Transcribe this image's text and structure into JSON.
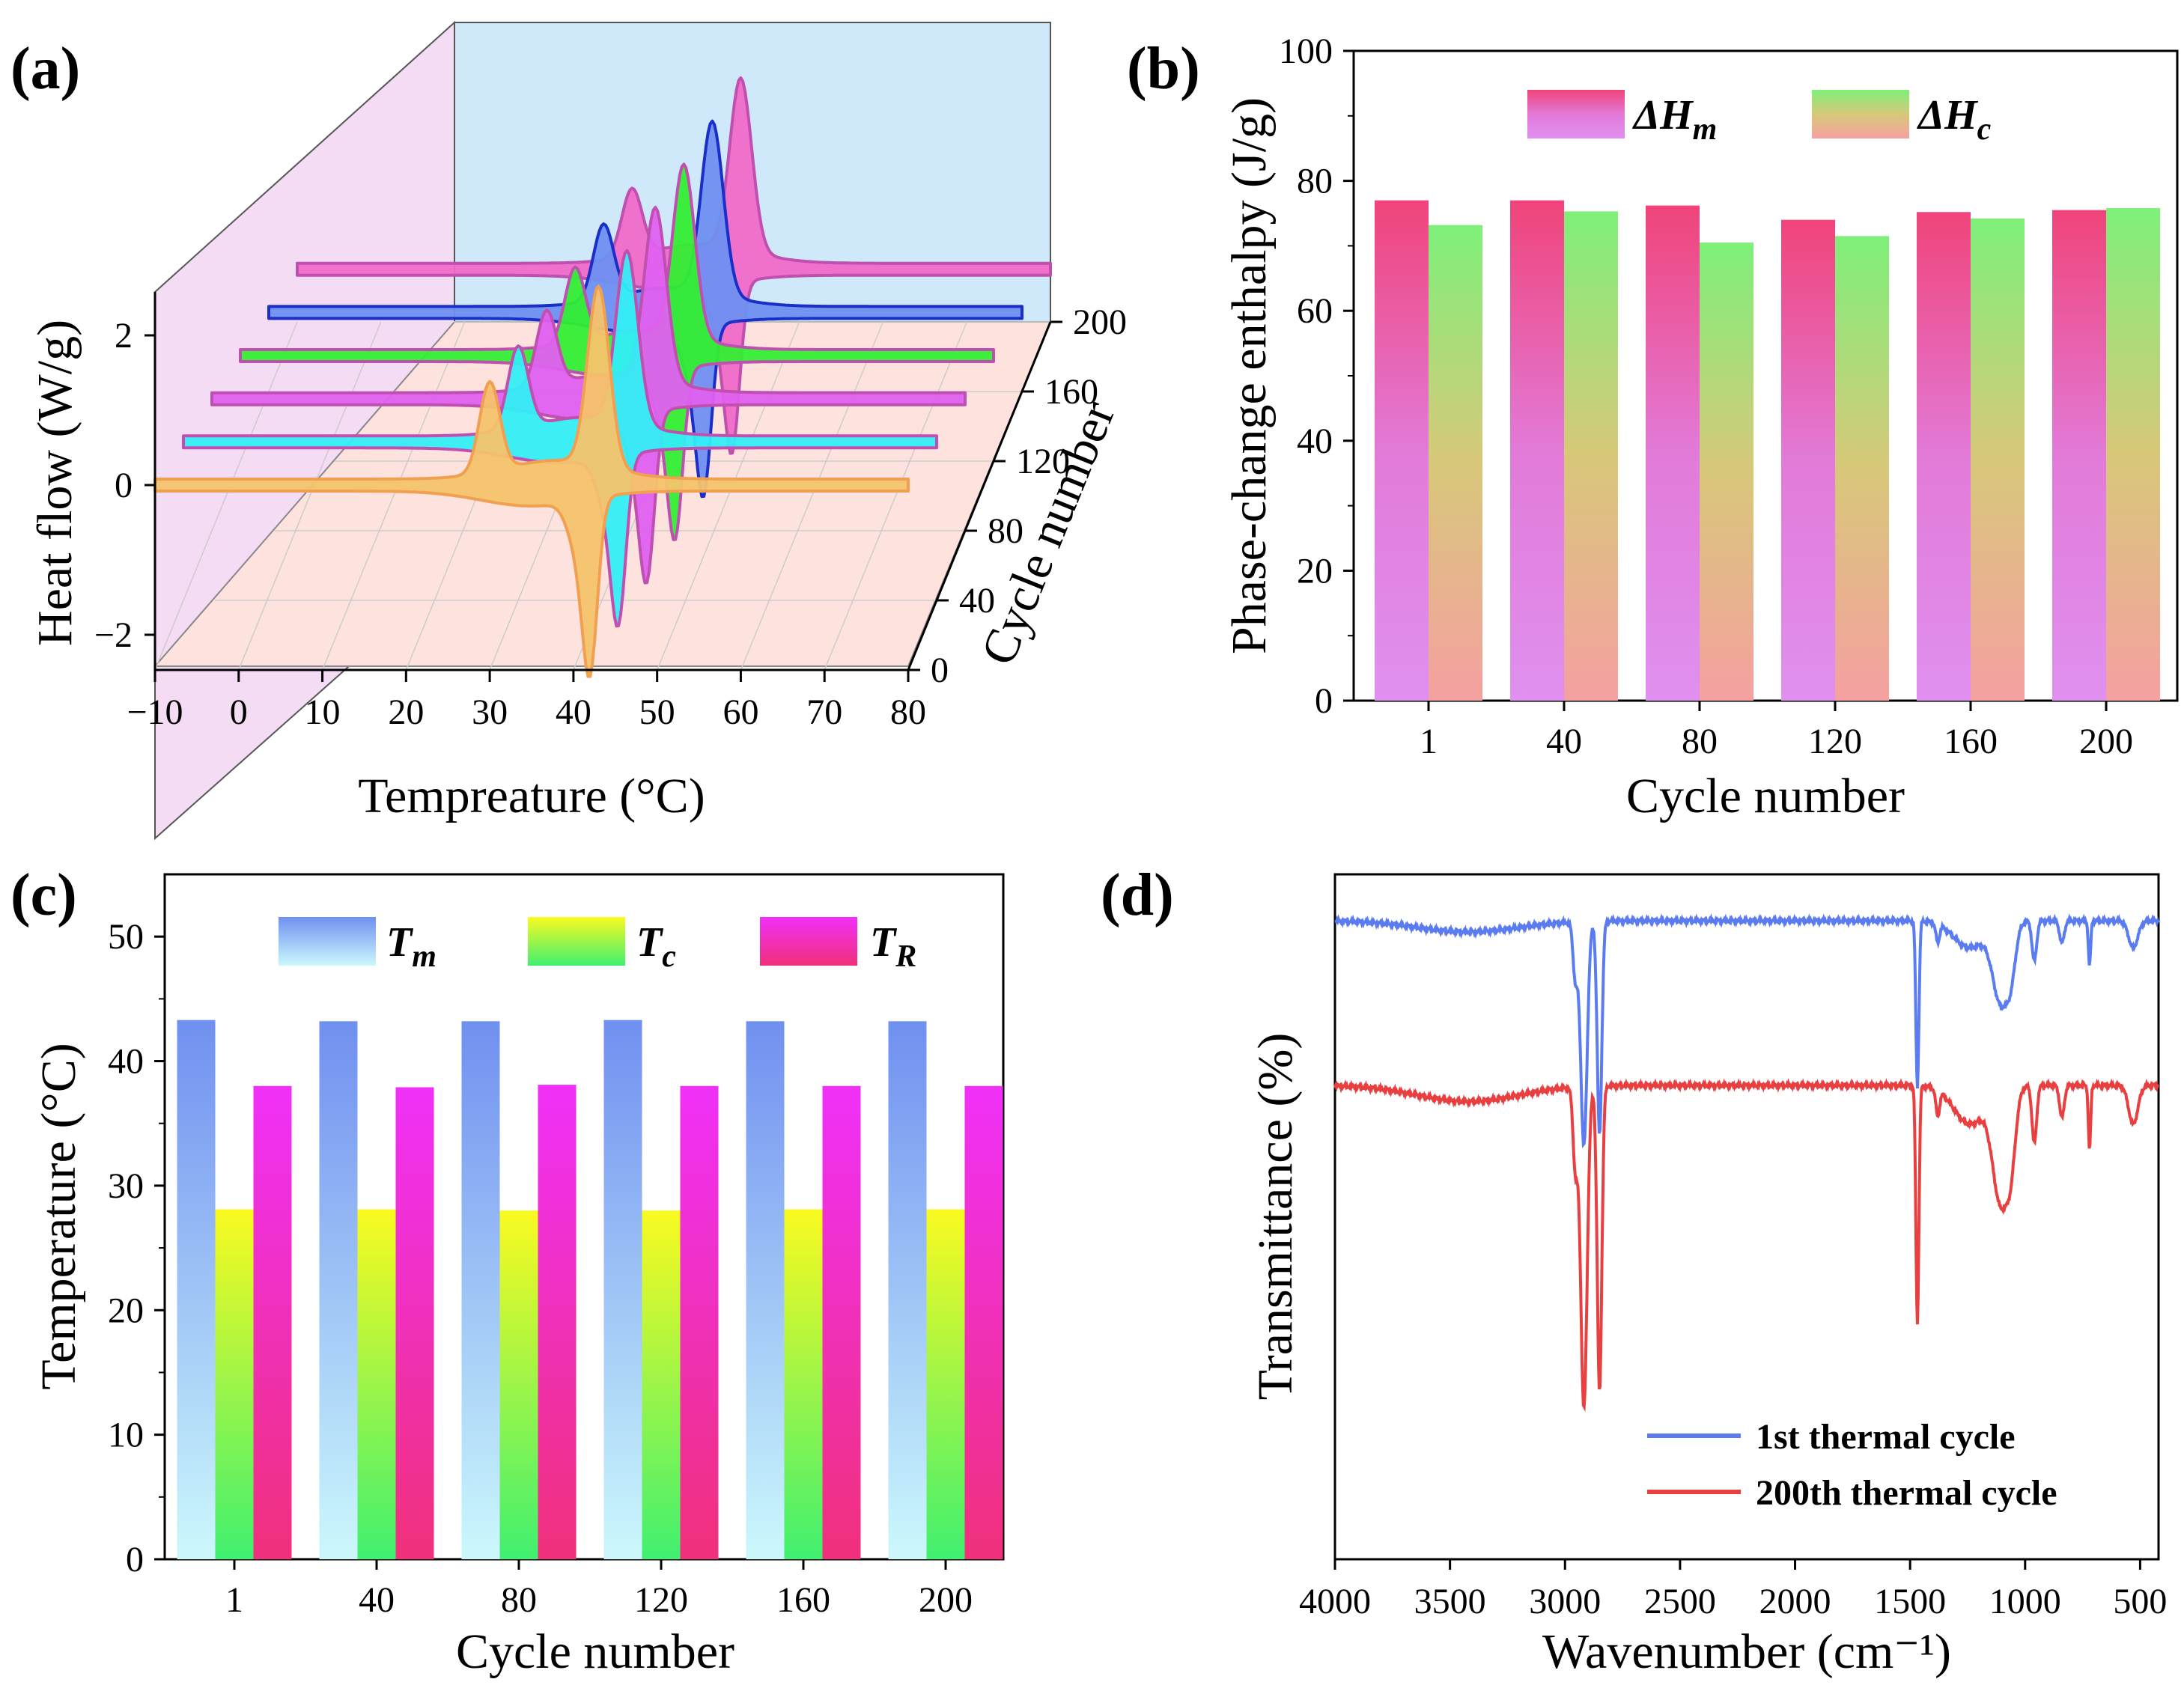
{
  "chart_data": [
    {
      "panel": "(a)",
      "type": "line",
      "xlabel": "Tempreature (°C)",
      "ylabel": "Heat flow (W/g)",
      "zlabel": "Cycle number",
      "x_ticks": [
        "−10",
        "0",
        "10",
        "20",
        "30",
        "40",
        "50",
        "60",
        "70",
        "80"
      ],
      "y_ticks": [
        "2",
        "0",
        "−2"
      ],
      "z_ticks": [
        "0",
        "40",
        "80",
        "120",
        "160",
        "200"
      ],
      "xlim": [
        -10,
        80
      ],
      "ylim": [
        -2.4,
        2.5
      ],
      "series": [
        {
          "cycle": 1,
          "color": "#f6c36b",
          "melt_peak_T": 43,
          "melt_peak": 2.4,
          "shoulder_T": 30,
          "shoulder": 1.2,
          "cryst_peak_T": 42,
          "cryst_peak": -2.1
        },
        {
          "cycle": 40,
          "color": "#33eef5",
          "melt_peak_T": 43,
          "melt_peak": 2.3,
          "shoulder_T": 30,
          "shoulder": 1.1,
          "cryst_peak_T": 42,
          "cryst_peak": -2.0
        },
        {
          "cycle": 80,
          "color": "#e060f0",
          "melt_peak_T": 43,
          "melt_peak": 2.3,
          "shoulder_T": 30,
          "shoulder": 1.0,
          "cryst_peak_T": 42,
          "cryst_peak": -2.0
        },
        {
          "cycle": 120,
          "color": "#33ee33",
          "melt_peak_T": 43,
          "melt_peak": 2.3,
          "shoulder_T": 30,
          "shoulder": 1.0,
          "cryst_peak_T": 42,
          "cryst_peak": -2.0
        },
        {
          "cycle": 160,
          "color": "#6f8ff0",
          "melt_peak_T": 43,
          "melt_peak": 2.3,
          "shoulder_T": 30,
          "shoulder": 1.0,
          "cryst_peak_T": 42,
          "cryst_peak": -2.0
        },
        {
          "cycle": 200,
          "color": "#f06ac8",
          "melt_peak_T": 43,
          "melt_peak": 2.3,
          "shoulder_T": 30,
          "shoulder": 0.9,
          "cryst_peak_T": 42,
          "cryst_peak": -2.0
        }
      ]
    },
    {
      "panel": "(b)",
      "type": "bar",
      "xlabel": "Cycle number",
      "ylabel": "Phase-change enthalpy (J/g)",
      "categories": [
        "1",
        "40",
        "80",
        "120",
        "160",
        "200"
      ],
      "ylim": [
        0,
        100
      ],
      "y_ticks": [
        0,
        20,
        40,
        60,
        80,
        100
      ],
      "series": [
        {
          "name": "ΔH",
          "sub": "m",
          "values": [
            77.0,
            77.0,
            76.2,
            74.0,
            75.2,
            75.5
          ]
        },
        {
          "name": "ΔH",
          "sub": "c",
          "values": [
            73.2,
            75.3,
            70.5,
            71.5,
            74.2,
            75.8
          ]
        }
      ]
    },
    {
      "panel": "(c)",
      "type": "bar",
      "xlabel": "Cycle number",
      "ylabel": "Temperature (°C)",
      "categories": [
        "1",
        "40",
        "80",
        "120",
        "160",
        "200"
      ],
      "ylim": [
        0,
        55
      ],
      "y_ticks": [
        0,
        10,
        20,
        30,
        40,
        50
      ],
      "series": [
        {
          "name": "T",
          "sub": "m",
          "values": [
            43.3,
            43.2,
            43.2,
            43.3,
            43.2,
            43.2
          ]
        },
        {
          "name": "T",
          "sub": "c",
          "values": [
            28.1,
            28.1,
            28.0,
            28.0,
            28.1,
            28.1
          ]
        },
        {
          "name": "T",
          "sub": "R",
          "values": [
            38.0,
            37.9,
            38.1,
            38.0,
            38.0,
            38.0
          ]
        }
      ]
    },
    {
      "panel": "(d)",
      "type": "line",
      "xlabel": "Wavenumber (cm⁻¹)",
      "ylabel": "Transmittance (%)",
      "xlim": [
        4000,
        420
      ],
      "x_ticks": [
        "4000",
        "3500",
        "3000",
        "2500",
        "2000",
        "1500",
        "1000",
        "500"
      ],
      "series": [
        {
          "name": "1st thermal cycle",
          "color": "#5b7bf0",
          "offset": 1.0
        },
        {
          "name": "200th thermal cycle",
          "color": "#e84040",
          "offset": 0.0
        }
      ]
    }
  ]
}
